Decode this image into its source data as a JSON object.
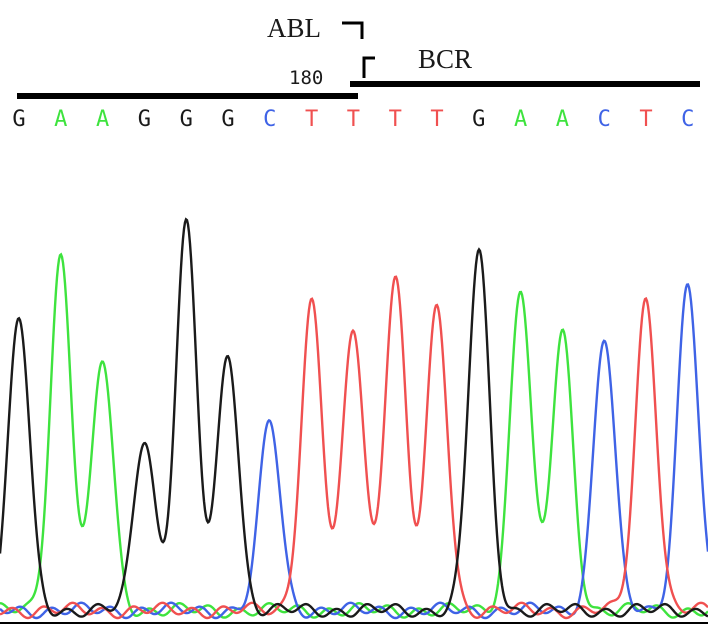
{
  "chart_data": {
    "type": "line",
    "title": "",
    "xlabel": "",
    "ylabel": "",
    "gene_labels": {
      "left": "ABL",
      "right": "BCR"
    },
    "position_label": "180",
    "colors": {
      "G": "#1a1a1a",
      "A": "#3ee33e",
      "C": "#3f63e6",
      "T": "#f05050"
    },
    "bases": [
      "G",
      "A",
      "A",
      "G",
      "G",
      "G",
      "C",
      "T",
      "T",
      "T",
      "T",
      "G",
      "A",
      "A",
      "C",
      "T",
      "C"
    ],
    "series": [
      {
        "base": "G",
        "values": [
          0.76,
          0,
          0,
          0.45,
          1.0,
          0.67,
          0,
          0,
          0,
          0,
          0,
          0.93,
          0,
          0,
          0,
          0,
          0
        ]
      },
      {
        "base": "A",
        "values": [
          0,
          0.92,
          0.65,
          0,
          0,
          0,
          0,
          0,
          0,
          0,
          0,
          0,
          0.84,
          0.72,
          0,
          0,
          0
        ]
      },
      {
        "base": "C",
        "values": [
          0,
          0,
          0,
          0,
          0,
          0,
          0.49,
          0,
          0,
          0,
          0,
          0,
          0,
          0,
          0.71,
          0,
          0.85
        ]
      },
      {
        "base": "T",
        "values": [
          0,
          0,
          0,
          0,
          0,
          0,
          0,
          0.8,
          0.73,
          0.87,
          0.78,
          0,
          0,
          0,
          0,
          0.81,
          0
        ]
      }
    ]
  }
}
